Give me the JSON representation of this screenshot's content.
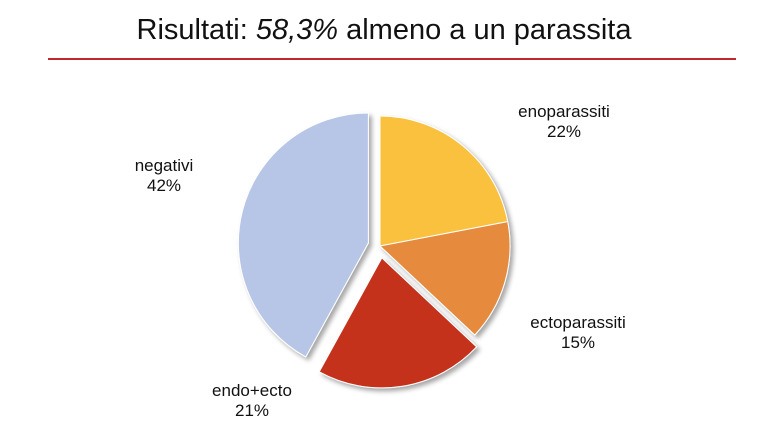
{
  "slide": {
    "title_prefix": "Risultati: ",
    "title_highlight": "58,3%",
    "title_suffix": " almeno a un parassita"
  },
  "colors": {
    "rule": "#c0282d"
  },
  "chart_data": {
    "type": "pie",
    "title": "",
    "slices": [
      {
        "name": "enoparassiti",
        "label": "22%",
        "value": 22,
        "color": "#f9c13d",
        "exploded": false
      },
      {
        "name": "ectoparassiti",
        "label": "15%",
        "value": 15,
        "color": "#e68a3d",
        "exploded": false
      },
      {
        "name": "endo+ecto",
        "label": "21%",
        "value": 21,
        "color": "#c4321c",
        "exploded": true
      },
      {
        "name": "negativi",
        "label": "42%",
        "value": 42,
        "color": "#b7c6e6",
        "exploded": true
      }
    ],
    "start_angle": "12 o'clock",
    "direction": "clockwise",
    "legend": "none, labels beside slices"
  }
}
